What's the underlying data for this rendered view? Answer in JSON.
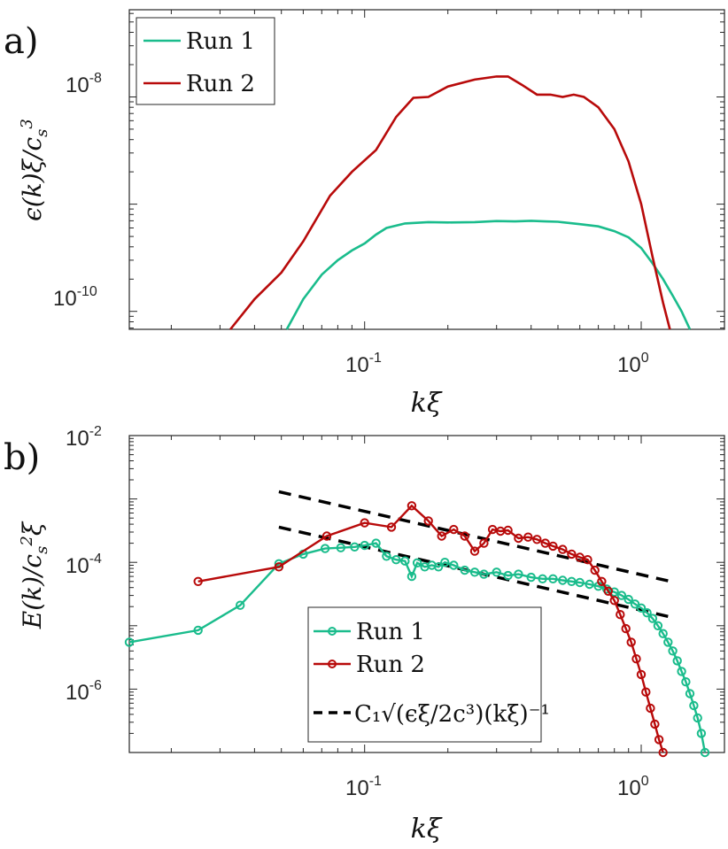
{
  "chart_data": [
    {
      "panel_label": "a)",
      "type": "line",
      "xscale": "log",
      "yscale": "log",
      "xlim": [
        0.0141,
        2.0
      ],
      "ylim": [
        6.8e-11,
        6.5e-08
      ],
      "xticks": [
        {
          "base": "10",
          "exp": "-1"
        },
        {
          "base": "10",
          "exp": "0"
        }
      ],
      "yticks": [
        {
          "base": "10",
          "exp": "-10"
        },
        {
          "base": "10",
          "exp": "-8"
        }
      ],
      "xlabel": "kξ",
      "ylabel": "ϵ(k)ξ/c_s^3",
      "legend_position": "top-left",
      "series": [
        {
          "name": "Run 1",
          "color": "#1ABC8C",
          "x": [
            0.0523,
            0.06,
            0.07,
            0.08,
            0.09,
            0.1,
            0.11,
            0.12,
            0.14,
            0.17,
            0.2,
            0.25,
            0.3,
            0.35,
            0.4,
            0.45,
            0.5,
            0.6,
            0.7,
            0.8,
            0.9,
            1.0,
            1.1,
            1.2,
            1.3,
            1.4,
            1.5
          ],
          "values": [
            6.8e-11,
            1.3e-10,
            2.2e-10,
            3e-10,
            3.7e-10,
            4.3e-10,
            5.2e-10,
            6e-10,
            6.6e-10,
            6.8e-10,
            6.75e-10,
            6.8e-10,
            6.95e-10,
            6.9e-10,
            7e-10,
            6.9e-10,
            6.85e-10,
            6.5e-10,
            6.2e-10,
            5.6e-10,
            4.9e-10,
            3.9e-10,
            2.8e-10,
            2e-10,
            1.4e-10,
            1e-10,
            6.8e-11
          ]
        },
        {
          "name": "Run 2",
          "color": "#B80A0A",
          "x": [
            0.0327,
            0.04,
            0.05,
            0.06,
            0.075,
            0.09,
            0.11,
            0.13,
            0.15,
            0.17,
            0.2,
            0.25,
            0.3,
            0.33,
            0.37,
            0.42,
            0.47,
            0.52,
            0.57,
            0.62,
            0.7,
            0.8,
            0.9,
            1.0,
            1.1,
            1.2,
            1.27
          ],
          "values": [
            6.8e-11,
            1.3e-10,
            2.3e-10,
            4.5e-10,
            1.2e-09,
            2e-09,
            3.2e-09,
            6.5e-09,
            9.8e-09,
            1e-08,
            1.25e-08,
            1.45e-08,
            1.55e-08,
            1.55e-08,
            1.3e-08,
            1.05e-08,
            1.05e-08,
            1e-08,
            1.05e-08,
            1e-08,
            8e-09,
            5e-09,
            2.5e-09,
            1e-09,
            3.2e-10,
            1.2e-10,
            6.8e-11
          ]
        }
      ]
    },
    {
      "panel_label": "b)",
      "type": "line",
      "xscale": "log",
      "yscale": "log",
      "xlim": [
        0.0141,
        2.0
      ],
      "ylim": [
        1e-07,
        0.01
      ],
      "xticks": [
        {
          "base": "10",
          "exp": "-1"
        },
        {
          "base": "10",
          "exp": "0"
        }
      ],
      "yticks": [
        {
          "base": "10",
          "exp": "-6"
        },
        {
          "base": "10",
          "exp": "-4"
        },
        {
          "base": "10",
          "exp": "-2"
        }
      ],
      "xlabel": "kξ",
      "ylabel": "E(k)/c_s^2ξ",
      "legend_position": "bottom-center",
      "series": [
        {
          "name": "Run 1",
          "color": "#1ABC8C",
          "marker": "circle",
          "x": [
            0.0141,
            0.025,
            0.0355,
            0.049,
            0.06,
            0.072,
            0.082,
            0.092,
            0.1,
            0.11,
            0.12,
            0.13,
            0.14,
            0.148,
            0.155,
            0.165,
            0.175,
            0.185,
            0.195,
            0.21,
            0.23,
            0.25,
            0.27,
            0.3,
            0.33,
            0.36,
            0.4,
            0.44,
            0.48,
            0.52,
            0.56,
            0.6,
            0.65,
            0.7,
            0.75,
            0.8,
            0.85,
            0.9,
            0.95,
            1.0,
            1.05,
            1.1,
            1.15,
            1.2,
            1.25,
            1.3,
            1.35,
            1.4,
            1.45,
            1.5,
            1.55,
            1.6,
            1.65,
            1.7
          ],
          "values": [
            5.5e-06,
            8.5e-06,
            2.1e-05,
            9.5e-05,
            0.000135,
            0.000165,
            0.00017,
            0.000175,
            0.000185,
            0.0002,
            0.000125,
            0.00011,
            0.000105,
            6e-05,
            9.8e-05,
            8.5e-05,
            9e-05,
            8.5e-05,
            0.0001,
            9e-05,
            7.5e-05,
            7e-05,
            6.5e-05,
            7e-05,
            6.2e-05,
            6.5e-05,
            5.8e-05,
            5.5e-05,
            5.5e-05,
            5.2e-05,
            5e-05,
            4.8e-05,
            4.5e-05,
            4.2e-05,
            3.8e-05,
            3.4e-05,
            3e-05,
            2.6e-05,
            2.2e-05,
            1.9e-05,
            1.6e-05,
            1.3e-05,
            1e-05,
            7.5e-06,
            5.5e-06,
            4e-06,
            2.8e-06,
            1.9e-06,
            1.3e-06,
            8.5e-07,
            5.5e-07,
            3.5e-07,
            2e-07,
            1e-07
          ]
        },
        {
          "name": "Run 2",
          "color": "#B80A0A",
          "marker": "circle",
          "x": [
            0.025,
            0.049,
            0.073,
            0.1,
            0.125,
            0.148,
            0.17,
            0.19,
            0.21,
            0.23,
            0.25,
            0.27,
            0.29,
            0.31,
            0.33,
            0.36,
            0.39,
            0.42,
            0.45,
            0.48,
            0.52,
            0.56,
            0.6,
            0.64,
            0.68,
            0.72,
            0.76,
            0.8,
            0.84,
            0.88,
            0.92,
            0.96,
            1.0,
            1.04,
            1.08,
            1.12,
            1.16,
            1.2
          ],
          "values": [
            5e-05,
            8.5e-05,
            0.00026,
            0.00042,
            0.00036,
            0.00078,
            0.00045,
            0.00026,
            0.00033,
            0.00026,
            0.00015,
            0.0002,
            0.00033,
            0.00031,
            0.00032,
            0.00024,
            0.00025,
            0.00023,
            0.0002,
            0.00018,
            0.00016,
            0.000135,
            0.00012,
            0.00011,
            7.5e-05,
            5e-05,
            3.5e-05,
            2.5e-05,
            1.5e-05,
            9e-06,
            5.5e-06,
            3e-06,
            1.7e-06,
            9e-07,
            5e-07,
            2.8e-07,
            1.6e-07,
            1e-07
          ]
        },
        {
          "name": "C1 sqrt(ϵξ/2c^3)(kξ)^-1",
          "color": "#000000",
          "style": "dashed",
          "x": [
            0.049,
            1.25
          ],
          "values": [
            0.00036,
            1.4e-05
          ]
        },
        {
          "name": "",
          "color": "#000000",
          "style": "dashed",
          "x": [
            0.049,
            1.25
          ],
          "values": [
            0.0013,
            5.1e-05
          ]
        }
      ],
      "legend": {
        "entries": [
          {
            "label": "Run 1"
          },
          {
            "label": "Run 2"
          },
          {
            "label": "C₁√(ϵξ/2c³)(kξ)⁻¹"
          }
        ]
      }
    }
  ]
}
